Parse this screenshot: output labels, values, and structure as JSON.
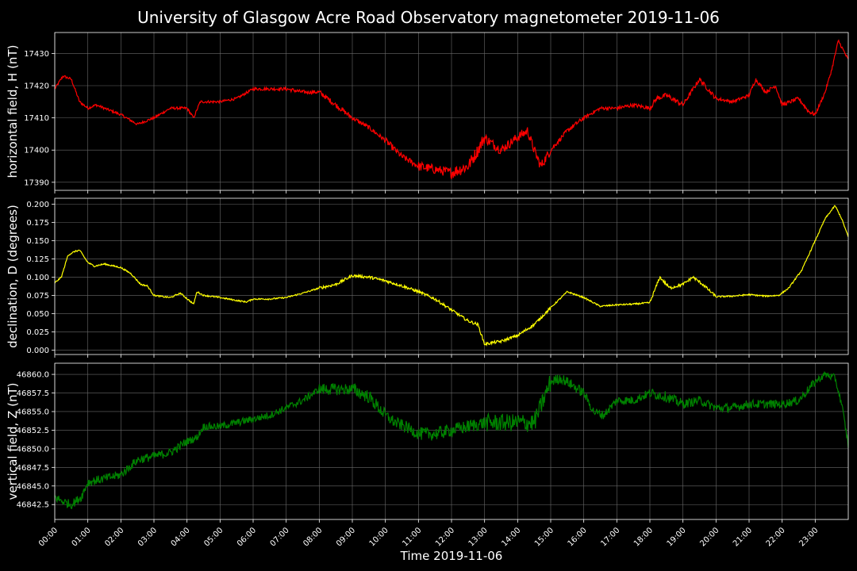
{
  "chart_data": {
    "type": "line",
    "title": "University of Glasgow Acre Road Observatory magnetometer 2019-11-06",
    "xlabel": "Time 2019-11-06",
    "x_unit": "hours since 00:00",
    "xlim": [
      0,
      24
    ],
    "x_ticks": [
      0,
      1,
      2,
      3,
      4,
      5,
      6,
      7,
      8,
      9,
      10,
      11,
      12,
      13,
      14,
      15,
      16,
      17,
      18,
      19,
      20,
      21,
      22,
      23
    ],
    "x_tick_labels": [
      "00:00",
      "01:00",
      "02:00",
      "03:00",
      "04:00",
      "05:00",
      "06:00",
      "07:00",
      "08:00",
      "09:00",
      "10:00",
      "11:00",
      "12:00",
      "13:00",
      "14:00",
      "15:00",
      "16:00",
      "17:00",
      "18:00",
      "19:00",
      "20:00",
      "21:00",
      "22:00",
      "23:00"
    ],
    "grid": true,
    "panels": [
      {
        "name": "horizontal",
        "ylabel": "horizontal field, H (nT)",
        "color": "#ff0000",
        "ylim": [
          17387.5,
          17436.5
        ],
        "y_ticks": [
          17390,
          17400,
          17410,
          17420,
          17430
        ],
        "y_tick_labels": [
          "17390",
          "17400",
          "17410",
          "17420",
          "17430"
        ],
        "noise": [
          0.4,
          0.4,
          0.4,
          0.4,
          0.4,
          0.4,
          0.5,
          0.6,
          0.8,
          0.7,
          1.0,
          1.5,
          2.0,
          1.5,
          1.5,
          0.7,
          0.5,
          0.6,
          0.8,
          0.7,
          0.5,
          0.6,
          0.6,
          0.5,
          0.5
        ],
        "x": [
          0,
          0.25,
          0.5,
          0.75,
          1.0,
          1.25,
          1.5,
          2.0,
          2.5,
          3.0,
          3.5,
          4.0,
          4.2,
          4.4,
          5.0,
          5.5,
          6.0,
          6.5,
          7.0,
          7.5,
          8.0,
          8.5,
          9.0,
          9.5,
          10.0,
          10.5,
          11.0,
          11.5,
          12.0,
          12.5,
          12.8,
          13.0,
          13.1,
          13.5,
          14.0,
          14.3,
          14.5,
          14.7,
          15.0,
          15.5,
          16.0,
          16.5,
          17.0,
          17.5,
          18.0,
          18.2,
          18.5,
          19.0,
          19.5,
          20.0,
          20.5,
          21.0,
          21.2,
          21.5,
          21.8,
          22.0,
          22.5,
          22.8,
          23.0,
          23.3,
          23.5,
          23.7,
          24.0
        ],
        "values": [
          17419,
          17423,
          17422,
          17415,
          17413,
          17414,
          17413,
          17411,
          17408,
          17410,
          17413,
          17413,
          17410,
          17415,
          17415,
          17416,
          17419,
          17419,
          17419,
          17418,
          17418,
          17414,
          17410,
          17407,
          17403,
          17398,
          17395,
          17394,
          17393,
          17395,
          17400,
          17404,
          17403,
          17400,
          17404,
          17406,
          17400,
          17395,
          17400,
          17406,
          17410,
          17413,
          17413,
          17414,
          17413,
          17416,
          17417,
          17414,
          17422,
          17416,
          17415,
          17417,
          17422,
          17418,
          17420,
          17414,
          17416,
          17412,
          17411,
          17418,
          17425,
          17434,
          17428
        ]
      },
      {
        "name": "declination",
        "ylabel": "declination, D (degrees)",
        "color": "#ffff00",
        "ylim": [
          -0.006,
          0.208
        ],
        "y_ticks": [
          0.0,
          0.025,
          0.05,
          0.075,
          0.1,
          0.125,
          0.15,
          0.175,
          0.2
        ],
        "y_tick_labels": [
          "0.000",
          "0.025",
          "0.050",
          "0.075",
          "0.100",
          "0.125",
          "0.150",
          "0.175",
          "0.200"
        ],
        "noise": [
          0.001,
          0.001,
          0.001,
          0.001,
          0.001,
          0.001,
          0.001,
          0.001,
          0.002,
          0.002,
          0.002,
          0.002,
          0.002,
          0.002,
          0.002,
          0.001,
          0.001,
          0.001,
          0.002,
          0.002,
          0.001,
          0.001,
          0.001,
          0.001,
          0.001
        ],
        "x": [
          0,
          0.2,
          0.4,
          0.6,
          0.75,
          1.0,
          1.2,
          1.5,
          2.0,
          2.3,
          2.6,
          2.8,
          3.0,
          3.3,
          3.5,
          3.8,
          4.2,
          4.3,
          4.5,
          5.0,
          5.5,
          5.8,
          6.0,
          6.5,
          7.0,
          7.5,
          8.0,
          8.5,
          9.0,
          9.5,
          10.0,
          10.5,
          11.0,
          11.5,
          12.0,
          12.5,
          12.8,
          13.0,
          13.2,
          13.5,
          14.0,
          14.5,
          15.0,
          15.5,
          16.0,
          16.5,
          17.0,
          17.5,
          18.0,
          18.3,
          18.6,
          19.0,
          19.3,
          19.6,
          20.0,
          20.5,
          21.0,
          21.5,
          21.9,
          22.2,
          22.6,
          23.0,
          23.3,
          23.6,
          23.8,
          24.0
        ],
        "values": [
          0.092,
          0.1,
          0.13,
          0.135,
          0.137,
          0.12,
          0.115,
          0.118,
          0.113,
          0.105,
          0.09,
          0.088,
          0.075,
          0.073,
          0.072,
          0.078,
          0.063,
          0.08,
          0.075,
          0.072,
          0.068,
          0.066,
          0.07,
          0.07,
          0.072,
          0.078,
          0.085,
          0.09,
          0.102,
          0.1,
          0.095,
          0.088,
          0.08,
          0.07,
          0.055,
          0.04,
          0.035,
          0.008,
          0.01,
          0.012,
          0.02,
          0.035,
          0.058,
          0.08,
          0.072,
          0.06,
          0.062,
          0.063,
          0.065,
          0.1,
          0.085,
          0.09,
          0.1,
          0.09,
          0.073,
          0.074,
          0.076,
          0.074,
          0.075,
          0.085,
          0.11,
          0.15,
          0.18,
          0.198,
          0.18,
          0.155
        ]
      },
      {
        "name": "vertical",
        "ylabel": "vertical field, Z (nT)",
        "color": "#008000",
        "ylim": [
          46840.5,
          46861.5
        ],
        "y_ticks": [
          46842.5,
          46845.0,
          46847.5,
          46850.0,
          46852.5,
          46855.0,
          46857.5,
          46860.0
        ],
        "y_tick_labels": [
          "46842.5",
          "46845.0",
          "46847.5",
          "46850.0",
          "46852.5",
          "46855.0",
          "46857.5",
          "46860.0"
        ],
        "noise": [
          0.6,
          0.6,
          0.6,
          0.6,
          0.5,
          0.5,
          0.5,
          0.5,
          0.8,
          0.9,
          0.8,
          0.9,
          0.9,
          1.2,
          1.3,
          0.7,
          0.6,
          0.6,
          0.7,
          0.6,
          0.6,
          0.6,
          0.6,
          0.5,
          0.6
        ],
        "x": [
          0,
          0.2,
          0.5,
          0.8,
          1.0,
          1.5,
          2.0,
          2.5,
          3.0,
          3.5,
          4.0,
          4.3,
          4.5,
          5.0,
          5.5,
          6.0,
          6.5,
          7.0,
          7.5,
          8.0,
          8.5,
          9.0,
          9.5,
          10.0,
          10.3,
          10.6,
          11.0,
          11.5,
          12.0,
          12.5,
          13.0,
          13.5,
          14.0,
          14.5,
          15.0,
          15.3,
          15.5,
          16.0,
          16.3,
          16.6,
          17.0,
          17.5,
          18.0,
          18.5,
          19.0,
          19.5,
          20.0,
          20.5,
          21.0,
          21.5,
          22.0,
          22.5,
          23.0,
          23.3,
          23.6,
          23.8,
          24.0
        ],
        "values": [
          46843.5,
          46843.0,
          46842.5,
          46843.5,
          46845.5,
          46846.0,
          46846.5,
          46848.5,
          46849.0,
          46849.5,
          46851.0,
          46851.5,
          46853.0,
          46853.0,
          46853.5,
          46854.0,
          46854.5,
          46855.5,
          46856.5,
          46858.0,
          46858.0,
          46858.0,
          46857.0,
          46854.5,
          46853.5,
          46853.0,
          46852.0,
          46852.0,
          46852.5,
          46853.0,
          46853.5,
          46853.5,
          46853.5,
          46853.5,
          46859.0,
          46859.5,
          46859.0,
          46857.5,
          46855.0,
          46854.5,
          46856.5,
          46856.5,
          46857.5,
          46857.0,
          46856.0,
          46856.5,
          46855.5,
          46855.5,
          46856.0,
          46856.0,
          46856.0,
          46856.5,
          46859.0,
          46860.0,
          46859.5,
          46856.0,
          46850.5
        ]
      }
    ]
  }
}
